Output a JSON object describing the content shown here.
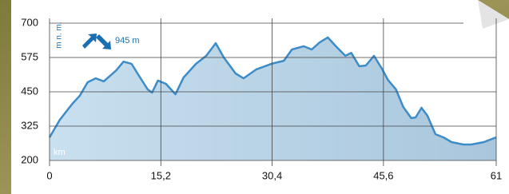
{
  "chart_data": {
    "type": "area",
    "y_label": "m n. m.",
    "annotation": "945 m",
    "x_label": "km",
    "color": "#3d8cc8",
    "fill_color": "#b9d5e8",
    "grid": true,
    "xlim": [
      0,
      61
    ],
    "ylim": [
      200,
      700
    ],
    "xticks": [
      0,
      {
        "value": 15.2,
        "label": "15,2"
      },
      {
        "value": 30.4,
        "label": "30,4"
      },
      {
        "value": 45.6,
        "label": "45,6"
      },
      61
    ],
    "yticks": [
      200,
      325,
      450,
      575,
      700
    ],
    "x": [
      0,
      1.4,
      3.1,
      4.1,
      5.2,
      6.3,
      7.4,
      9.1,
      10.1,
      11.2,
      12.3,
      13.4,
      14.0,
      14.8,
      15.9,
      17.2,
      18.3,
      20.0,
      21.4,
      22.7,
      23.8,
      25.4,
      26.5,
      28.2,
      30.3,
      32.0,
      33.1,
      34.7,
      35.8,
      36.9,
      38.0,
      39.1,
      40.4,
      41.2,
      42.3,
      43.2,
      44.3,
      45.4,
      46.2,
      47.3,
      48.3,
      49.4,
      50.0,
      50.8,
      51.6,
      52.7,
      53.8,
      54.9,
      56.5,
      57.6,
      59.3,
      61
    ],
    "values": [
      284,
      348,
      406,
      435,
      485,
      499,
      488,
      528,
      560,
      552,
      505,
      459,
      447,
      491,
      479,
      441,
      502,
      552,
      581,
      627,
      575,
      517,
      499,
      531,
      552,
      563,
      604,
      616,
      604,
      630,
      648,
      616,
      581,
      592,
      543,
      546,
      581,
      534,
      494,
      459,
      395,
      354,
      357,
      392,
      363,
      296,
      284,
      267,
      258,
      258,
      267,
      284
    ]
  }
}
